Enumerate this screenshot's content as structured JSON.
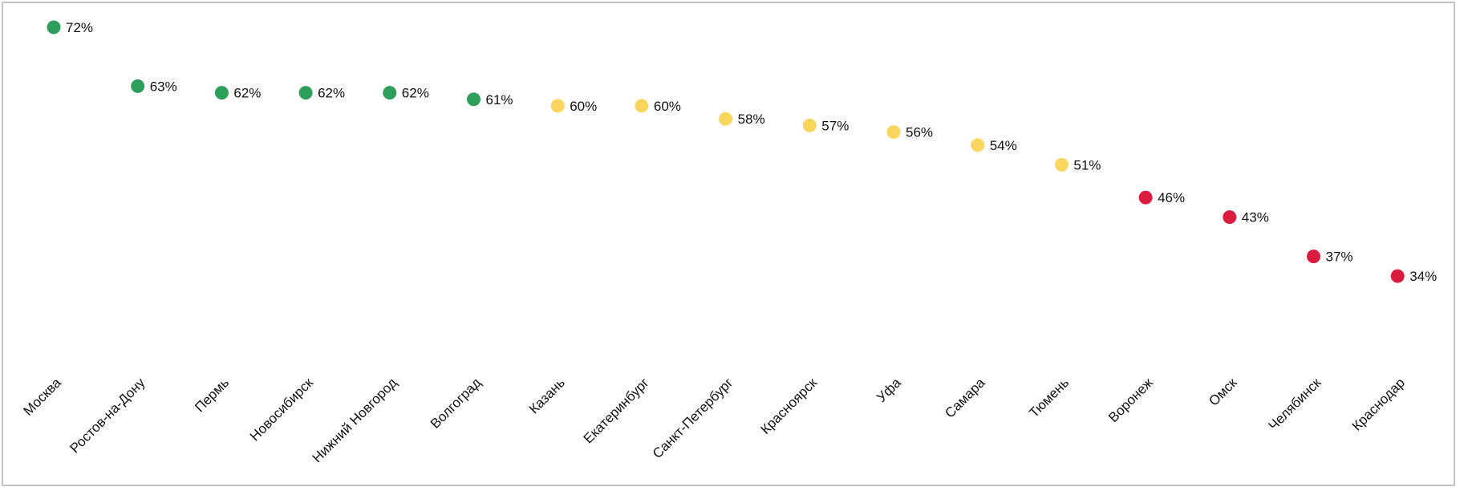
{
  "chart_data": {
    "type": "scatter",
    "title": "",
    "xlabel": "",
    "ylabel": "",
    "ylim": [
      0,
      80
    ],
    "grid": false,
    "legend": "none",
    "value_suffix": "%",
    "colors": {
      "high": "#2e9e5b",
      "medium": "#fad65f",
      "low": "#dc1c3e"
    },
    "categories": [
      "Москва",
      "Ростов-на-Дону",
      "Пермь",
      "Новосибирск",
      "Нижний Новгород",
      "Волгоград",
      "Казань",
      "Екатеринбург",
      "Санкт-Петербург",
      "Красноярск",
      "Уфа",
      "Самара",
      "Тюмень",
      "Воронеж",
      "Омск",
      "Челябинск",
      "Краснодар"
    ],
    "values": [
      72,
      63,
      62,
      62,
      62,
      61,
      60,
      60,
      58,
      57,
      56,
      54,
      51,
      46,
      43,
      37,
      34
    ],
    "value_labels": [
      "72%",
      "63%",
      "62%",
      "62%",
      "62%",
      "61%",
      "60%",
      "60%",
      "58%",
      "57%",
      "56%",
      "54%",
      "51%",
      "46%",
      "43%",
      "37%",
      "34%"
    ],
    "levels": [
      "high",
      "high",
      "high",
      "high",
      "high",
      "high",
      "medium",
      "medium",
      "medium",
      "medium",
      "medium",
      "medium",
      "medium",
      "low",
      "low",
      "low",
      "low"
    ]
  }
}
